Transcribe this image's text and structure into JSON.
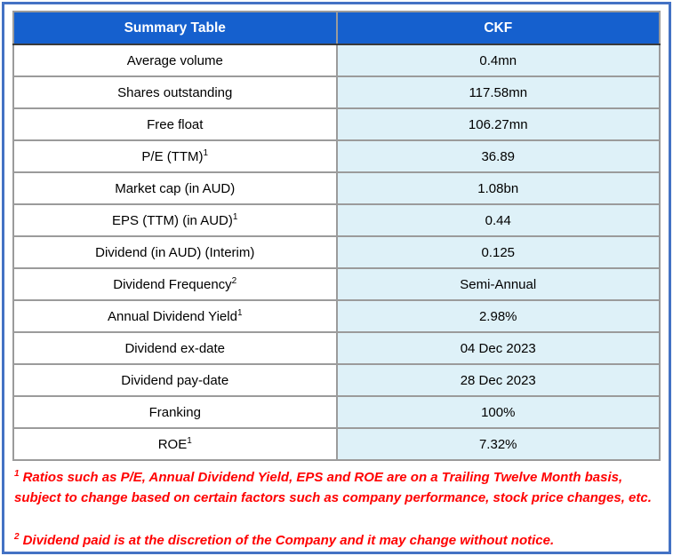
{
  "chart_data": {
    "type": "table",
    "title": "Summary Table",
    "columns": [
      "Summary Table",
      "CKF"
    ],
    "categories": [
      "Average volume",
      "Shares outstanding",
      "Free float",
      "P/E (TTM)",
      "Market cap (in AUD)",
      "EPS (TTM) (in AUD)",
      "Dividend (in AUD) (Interim)",
      "Dividend Frequency",
      "Annual Dividend Yield",
      "Dividend ex-date",
      "Dividend pay-date",
      "Franking",
      "ROE"
    ],
    "values": [
      "0.4mn",
      "117.58mn",
      "106.27mn",
      "36.89",
      "1.08bn",
      "0.44",
      "0.125",
      "Semi-Annual",
      "2.98%",
      "04 Dec 2023",
      "28 Dec 2023",
      "100%",
      "7.32%"
    ]
  },
  "header": {
    "col1": "Summary Table",
    "col2": "CKF"
  },
  "rows": [
    {
      "label": "Average volume",
      "sup": "",
      "value": "0.4mn"
    },
    {
      "label": "Shares outstanding",
      "sup": "",
      "value": "117.58mn"
    },
    {
      "label": "Free float",
      "sup": "",
      "value": "106.27mn"
    },
    {
      "label": "P/E (TTM)",
      "sup": "1",
      "value": "36.89"
    },
    {
      "label": "Market cap (in AUD)",
      "sup": "",
      "value": "1.08bn"
    },
    {
      "label": "EPS (TTM) (in AUD)",
      "sup": "1",
      "value": "0.44"
    },
    {
      "label": "Dividend (in AUD) (Interim)",
      "sup": "",
      "value": "0.125"
    },
    {
      "label": "Dividend Frequency",
      "sup": "2",
      "value": "Semi-Annual"
    },
    {
      "label": "Annual Dividend Yield",
      "sup": "1",
      "value": "2.98%"
    },
    {
      "label": "Dividend ex-date",
      "sup": "",
      "value": "04 Dec 2023"
    },
    {
      "label": "Dividend pay-date",
      "sup": "",
      "value": "28 Dec 2023"
    },
    {
      "label": "Franking",
      "sup": "",
      "value": "100%"
    },
    {
      "label": "ROE",
      "sup": "1",
      "value": "7.32%"
    }
  ],
  "footnotes": [
    {
      "sup": "1",
      "text": "Ratios such as P/E, Annual Dividend Yield, EPS and ROE are on a Trailing Twelve Month basis, subject to change based on certain factors such as company performance, stock price changes, etc."
    },
    {
      "sup": "2",
      "text": "Dividend paid is at the discretion of the Company and it may change without notice."
    }
  ],
  "colors": {
    "frame": "#4472C4",
    "header_bg": "#1560CE",
    "value_bg": "#DEF1F8",
    "grid": "#9B9B9B",
    "table_border": "#595959",
    "footnote": "#FF0000"
  }
}
